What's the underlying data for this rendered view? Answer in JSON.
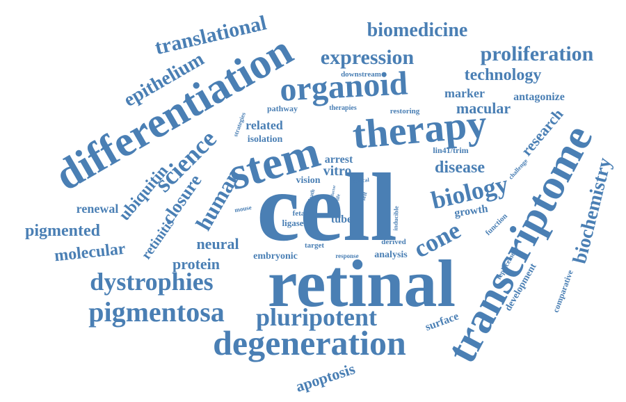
{
  "colors": {
    "word": "#4a7fb4",
    "background": "#ffffff"
  },
  "words": [
    "cell",
    "retinal",
    "stem",
    "therapy",
    "transcriptome",
    "differentiation",
    "organoid",
    "degeneration",
    "pluripotent",
    "pigmentosa",
    "dystrophies",
    "biology",
    "cone",
    "science",
    "human",
    "expression",
    "proliferation",
    "biomedicine",
    "translational",
    "epithelium",
    "technology",
    "macular",
    "disease",
    "biochemistry",
    "research",
    "closure",
    "ubiquitin",
    "retinitis",
    "pigmented",
    "molecular",
    "neural",
    "protein",
    "renewal",
    "apoptosis",
    "surface",
    "marker",
    "antagonize",
    "growth",
    "vitro",
    "arrest",
    "vision",
    "embryonic",
    "analysis",
    "related",
    "isolation",
    "tube",
    "fetal",
    "ligase",
    "lin41/trim",
    "development",
    "comparative",
    "replacement",
    "function",
    "challenge",
    "pathway",
    "therapies",
    "restoring",
    "downstream",
    "strategies",
    "target",
    "derived",
    "response",
    "inducible",
    "mouse",
    "death",
    "self",
    "critical",
    "factor",
    "life"
  ]
}
